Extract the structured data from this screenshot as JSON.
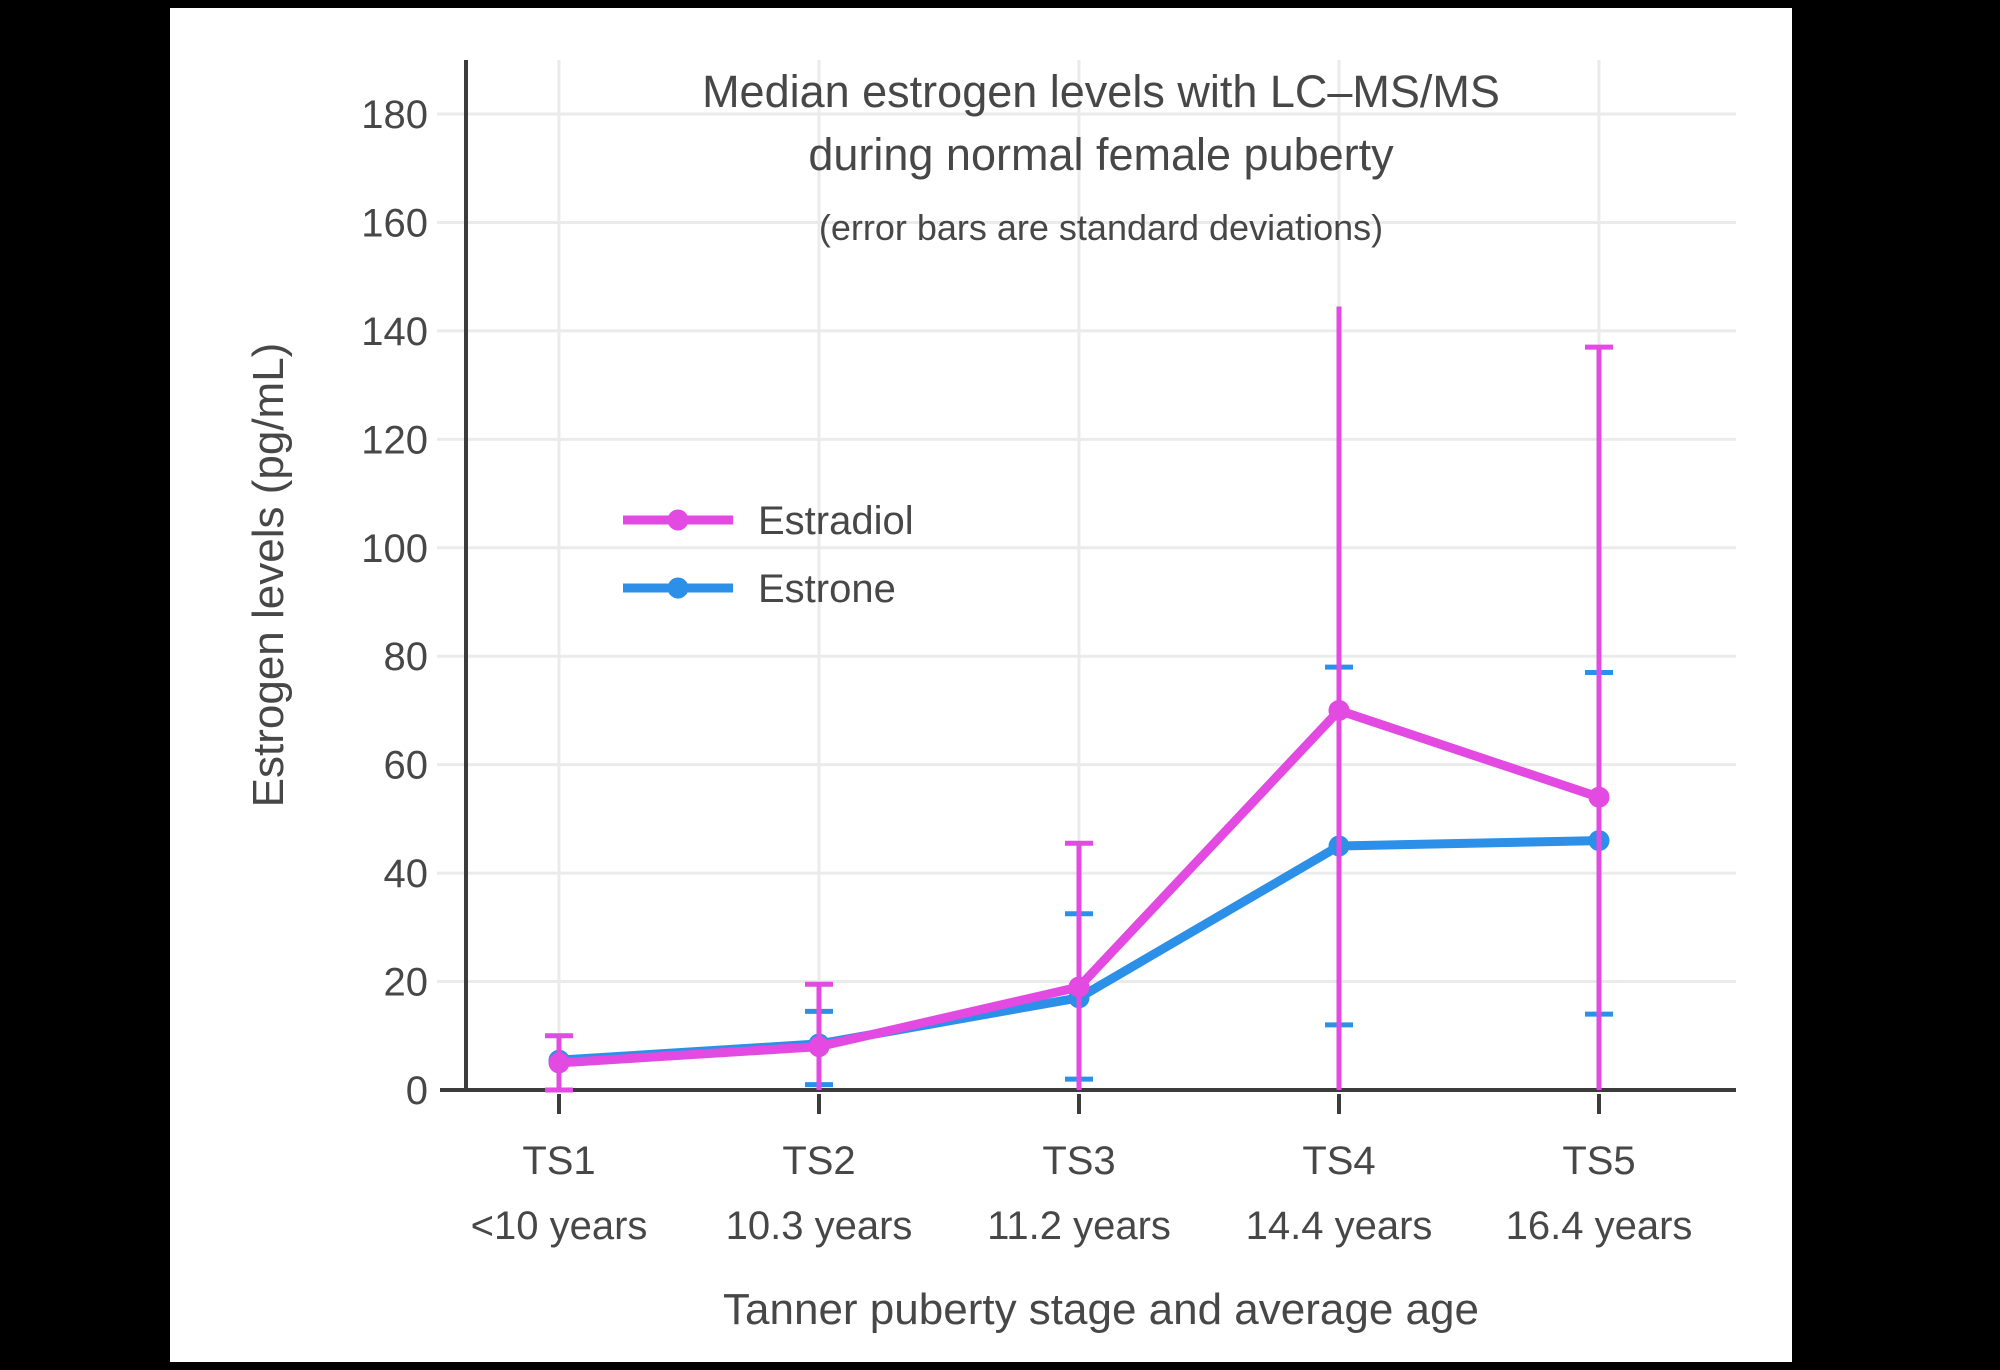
{
  "chart_data": {
    "type": "line",
    "title": "Median estrogen levels with LC–MS/MS",
    "title_line2": "during normal female puberty",
    "subtitle": "(error bars are standard deviations)",
    "xlabel": "Tanner puberty stage and average age",
    "ylabel": "Estrogen levels (pg/mL)",
    "ylim": [
      0,
      190
    ],
    "yticks": [
      0,
      20,
      40,
      60,
      80,
      100,
      120,
      140,
      160,
      180
    ],
    "grid": true,
    "legend_position": "inside-left",
    "categories": [
      "TS1",
      "TS2",
      "TS3",
      "TS4",
      "TS5"
    ],
    "category_ages": [
      "<10 years",
      "10.3 years",
      "11.2 years",
      "14.4 years",
      "16.4 years"
    ],
    "error_bar_meaning": "standard deviations",
    "series": [
      {
        "name": "Estradiol",
        "color": "#E24AE2",
        "values": [
          5,
          8,
          19,
          70,
          54
        ],
        "err_high": [
          10,
          19.5,
          45.5,
          144.5,
          137
        ],
        "err_low": [
          0,
          0,
          0,
          0,
          0
        ],
        "cap_high": [
          true,
          true,
          true,
          false,
          true
        ],
        "cap_low": [
          true,
          false,
          false,
          false,
          false
        ]
      },
      {
        "name": "Estrone",
        "color": "#2D90E8",
        "values": [
          5.5,
          8.5,
          17,
          45,
          46
        ],
        "err_high": [
          null,
          14.5,
          32.5,
          78,
          77
        ],
        "err_low": [
          null,
          1,
          2,
          12,
          14
        ],
        "cap_high": [
          false,
          true,
          true,
          true,
          true
        ],
        "cap_low": [
          false,
          true,
          true,
          true,
          true
        ]
      }
    ],
    "colors": {
      "text": "#474747",
      "axis": "#3C3C3C",
      "grid": "#EBEBEB",
      "background": "#FFFFFF",
      "frame": "#000000"
    }
  }
}
